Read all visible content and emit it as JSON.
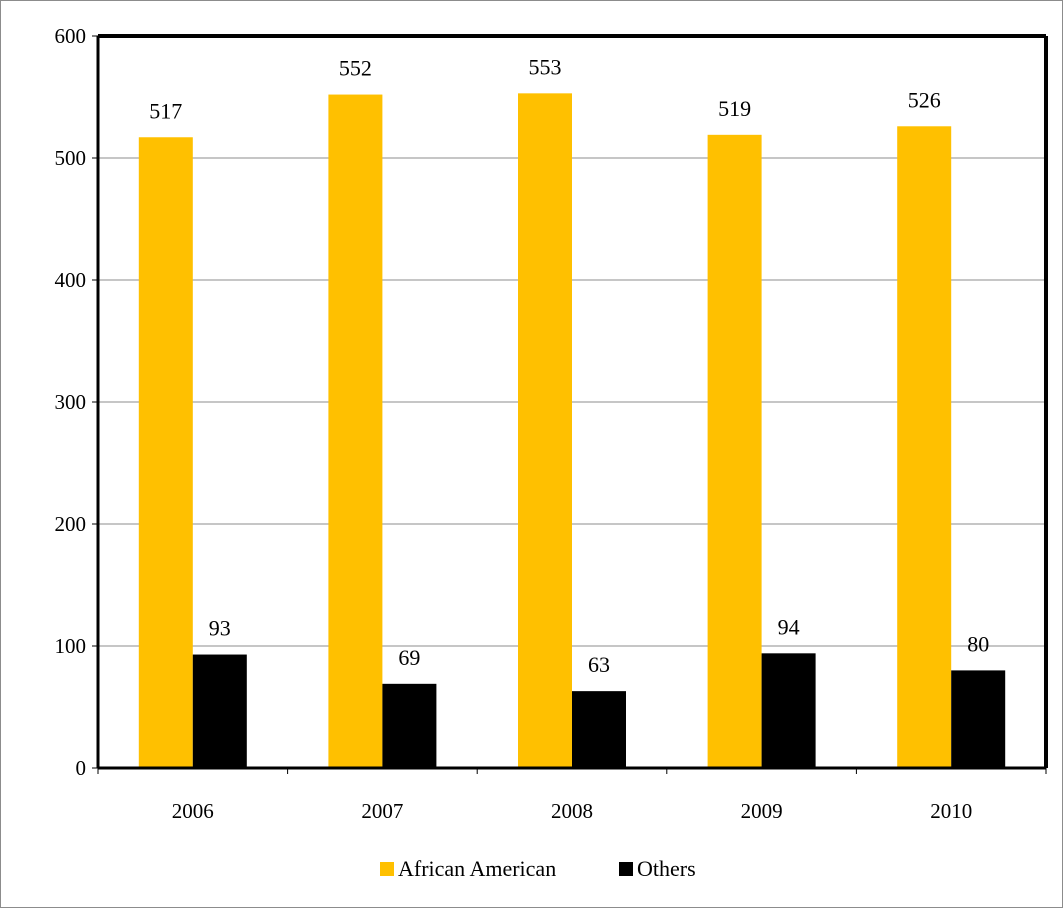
{
  "chart_data": {
    "type": "bar",
    "categories": [
      "2006",
      "2007",
      "2008",
      "2009",
      "2010"
    ],
    "series": [
      {
        "name": "African American",
        "values": [
          517,
          552,
          553,
          519,
          526
        ],
        "color": "#ffc000"
      },
      {
        "name": "Others",
        "values": [
          93,
          69,
          63,
          94,
          80
        ],
        "color": "#000000"
      }
    ],
    "title": "",
    "xlabel": "",
    "ylabel": "",
    "ylim": [
      0,
      600
    ],
    "yticks": [
      0,
      100,
      200,
      300,
      400,
      500,
      600
    ],
    "grid": true,
    "legend_position": "bottom",
    "data_labels": true
  }
}
